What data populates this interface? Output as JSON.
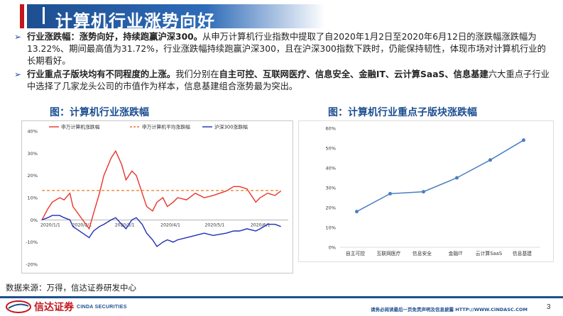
{
  "header": {
    "title": "计算机行业涨势向好"
  },
  "bullets": [
    {
      "bold": "行业涨跌幅：涨势向好，持续跑赢沪深300。",
      "text": "从申万计算机行业指数中提取了自2020年1月2日至2020年6月12日的涨跌幅涨跌幅为13.22%、期间最高值为31.72%，行业涨跌幅持续跑赢沪深300，且在沪深300指数下跌时，仍能保持韧性，体现市场对计算机行业的长期看好。"
    },
    {
      "bold": "行业重点子版块均有不同程度的上涨。",
      "text1": "我们分别在",
      "bold2": "自主可控、互联网医疗、信息安全、金融IT、云计算SaaS、信息基建",
      "text2": "六大重点子行业中选择了几家龙头公司的市值作为样本，信息基建组合涨势最为突出。"
    }
  ],
  "left_chart_title": "图：计算机行业涨跌幅",
  "right_chart_title": "图：计算机行业重点子版块涨跌幅",
  "chart_data": [
    {
      "type": "line",
      "title": "图：计算机行业涨跌幅",
      "x_tick_labels": [
        "2020/1/1",
        "2020/2/1",
        "2020/3/1",
        "2020/4/1",
        "2020/5/1",
        "2020/6/1"
      ],
      "y_tick_labels": [
        "40%",
        "30%",
        "20%",
        "10%",
        "0%",
        "-10%",
        "-20%"
      ],
      "ylim": [
        -20,
        40
      ],
      "legend_position": "top",
      "series": [
        {
          "name": "申万计算机涨跌幅",
          "color": "#e8332a",
          "style": "solid",
          "x": [
            "2020-01-02",
            "2020-01-06",
            "2020-01-09",
            "2020-01-14",
            "2020-01-17",
            "2020-01-21",
            "2020-01-23",
            "2020-02-03",
            "2020-02-06",
            "2020-02-10",
            "2020-02-13",
            "2020-02-18",
            "2020-02-21",
            "2020-02-25",
            "2020-02-28",
            "2020-03-03",
            "2020-03-06",
            "2020-03-10",
            "2020-03-13",
            "2020-03-17",
            "2020-03-20",
            "2020-03-24",
            "2020-03-27",
            "2020-03-31",
            "2020-04-03",
            "2020-04-09",
            "2020-04-15",
            "2020-04-21",
            "2020-04-27",
            "2020-05-06",
            "2020-05-11",
            "2020-05-15",
            "2020-05-20",
            "2020-05-26",
            "2020-05-29",
            "2020-06-03",
            "2020-06-08",
            "2020-06-12"
          ],
          "values": [
            0,
            5,
            8,
            10,
            9,
            12,
            6,
            -4,
            3,
            12,
            20,
            28,
            31,
            25,
            18,
            22,
            20,
            12,
            6,
            4,
            8,
            10,
            6,
            8,
            10,
            9,
            12,
            10,
            11,
            13,
            15,
            15,
            14,
            8,
            10,
            12,
            11,
            13
          ]
        },
        {
          "name": "申万计算机平均涨跌幅",
          "color": "#e87722",
          "style": "dashed",
          "x": [
            "2020-01-02",
            "2020-06-12"
          ],
          "values": [
            13.22,
            13.22
          ]
        },
        {
          "name": "沪深300涨跌幅",
          "color": "#1f2db8",
          "style": "solid",
          "x": [
            "2020-01-02",
            "2020-01-06",
            "2020-01-09",
            "2020-01-14",
            "2020-01-17",
            "2020-01-21",
            "2020-01-23",
            "2020-02-03",
            "2020-02-06",
            "2020-02-10",
            "2020-02-13",
            "2020-02-18",
            "2020-02-21",
            "2020-02-25",
            "2020-02-28",
            "2020-03-03",
            "2020-03-06",
            "2020-03-10",
            "2020-03-13",
            "2020-03-17",
            "2020-03-20",
            "2020-03-24",
            "2020-03-27",
            "2020-03-31",
            "2020-04-03",
            "2020-04-09",
            "2020-04-15",
            "2020-04-21",
            "2020-04-27",
            "2020-05-06",
            "2020-05-11",
            "2020-05-15",
            "2020-05-20",
            "2020-05-26",
            "2020-05-29",
            "2020-06-03",
            "2020-06-08",
            "2020-06-12"
          ],
          "values": [
            0,
            1,
            2,
            2,
            1,
            0,
            -3,
            -8,
            -5,
            -3,
            -2,
            0,
            1,
            -2,
            -4,
            0,
            1,
            -2,
            -6,
            -9,
            -12,
            -10,
            -9,
            -10,
            -9,
            -8,
            -7,
            -6,
            -7,
            -6,
            -5,
            -5,
            -4,
            -5,
            -4,
            -2,
            -2,
            -3
          ]
        }
      ]
    },
    {
      "type": "line",
      "title": "图：计算机行业重点子版块涨跌幅",
      "categories": [
        "自主可控",
        "互联网医疗",
        "信息安全",
        "金融IT",
        "云计算SaaS",
        "信息基建"
      ],
      "values": [
        18,
        27,
        28,
        35,
        44,
        54
      ],
      "y_tick_labels": [
        "0%",
        "10%",
        "20%",
        "30%",
        "40%",
        "50%",
        "60%"
      ],
      "ylim": [
        0,
        60
      ],
      "grid": false,
      "color": "#4a7fc1"
    }
  ],
  "source": "数据来源：万得，信达证券研发中心",
  "footer": {
    "logo_text": "信达证券",
    "logo_sub": "CINDA SECURITIES",
    "disclaimer": "请务必阅读最后一页免责声明及信息披露  HTTP://WWW.CINDASC.COM",
    "page": "3"
  },
  "colors": {
    "brand_blue": "#1d4f91",
    "brand_red": "#c4161c"
  }
}
